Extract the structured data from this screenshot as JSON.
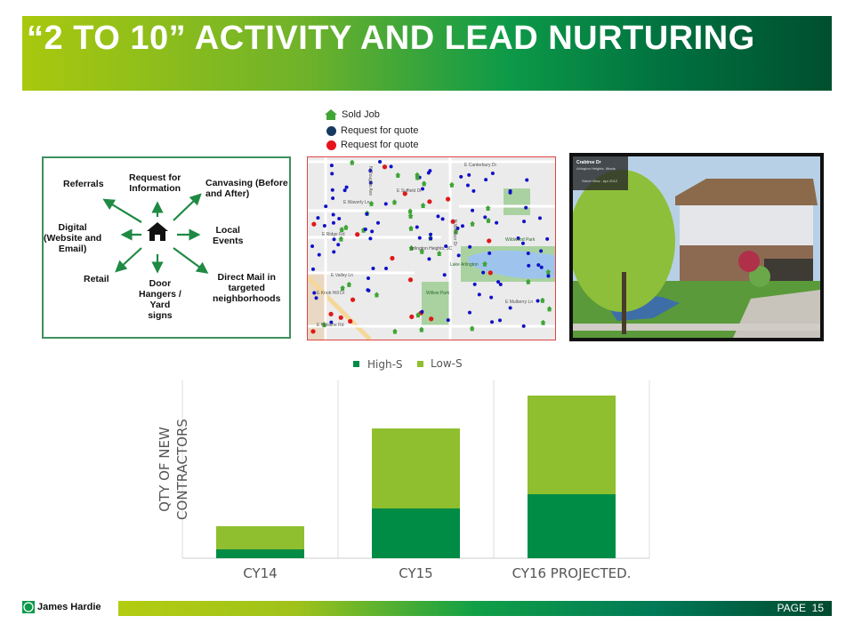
{
  "header": {
    "title": "“2 TO 10” ACTIVITY AND LEAD NURTURING"
  },
  "diagram": {
    "center_icon": "house-icon",
    "labels": {
      "referrals": "Referrals",
      "request_info": "Request for\nInformation",
      "canvasing": "Canvasing (Before\nand After)",
      "digital": "Digital\n(Website and\nEmail)",
      "local_events": "Local\nEvents",
      "retail": "Retail",
      "door_hangers": "Door\nHangers /\nYard\nsigns",
      "direct_mail": "Direct Mail in\ntargeted\nneighborhoods"
    },
    "arrow_color": "#1f8a43"
  },
  "map": {
    "legend": [
      {
        "label": "Sold Job",
        "icon": "green-house-icon",
        "color": "#3fa535"
      },
      {
        "label": "Request for quote",
        "icon": "navy-dot-icon",
        "color": "#163a5f"
      },
      {
        "label": "Request for quote",
        "icon": "red-dot-icon",
        "color": "#e8121c"
      }
    ],
    "streets": [
      "E Waverly Ln",
      "E Ridge Rd",
      "E Suffield Dr",
      "E Knob Hill Dr",
      "E Valley Ln",
      "E Palatine Rd",
      "N Windsor Dr",
      "E Canterbury Dr",
      "N Douglas Ave",
      "Arlington Heights, 3C",
      "Lake Arlington",
      "Willow Park",
      "Wildwood Park",
      "E Mulberry Ln"
    ],
    "marker_colors": {
      "blue": "#1010c8",
      "red": "#e01818",
      "green": "#3fa535"
    }
  },
  "photo": {
    "street": "Crabtree Dr",
    "city": "Arlington Heights, Illinois",
    "streetview": "Street View - Apr 2012"
  },
  "chart_data": {
    "type": "bar",
    "stacked": true,
    "categories": [
      "CY14",
      "CY15",
      "CY16 PROJECTED."
    ],
    "series": [
      {
        "name": "High-S",
        "color": "#008c45",
        "values": [
          5,
          28,
          36
        ]
      },
      {
        "name": "Low-S",
        "color": "#8fbf2f",
        "values": [
          13,
          45,
          55.5
        ]
      }
    ],
    "ylabel": "QTY OF NEW\nCONTRACTORS",
    "ylabel_lines": [
      "QTY OF NEW",
      "CONTRACTORS"
    ],
    "ylim": [
      0,
      100
    ],
    "y_ticks_shown": false,
    "grid": "vertical category separators",
    "legend": "top"
  },
  "footer": {
    "logo_text": "James Hardie",
    "page_label": "PAGE",
    "page_number": "15"
  }
}
